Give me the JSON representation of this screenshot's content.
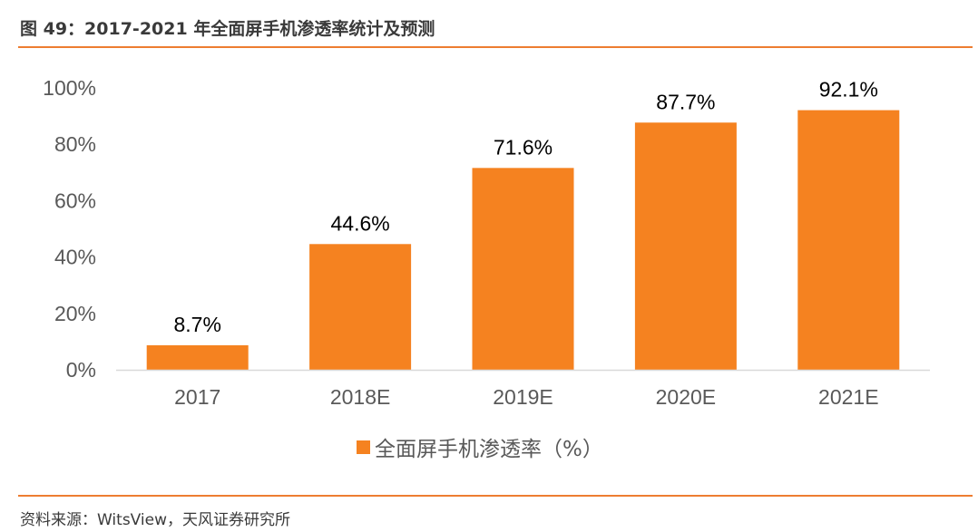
{
  "figure": {
    "title": "图 49：2017-2021 年全面屏手机渗透率统计及预测",
    "source": "资料来源：WitsView，天风证券研究所"
  },
  "chart_data": {
    "type": "bar",
    "categories": [
      "2017",
      "2018E",
      "2019E",
      "2020E",
      "2021E"
    ],
    "series": [
      {
        "name": "全面屏手机渗透率（%）",
        "values": [
          8.7,
          44.6,
          71.6,
          87.7,
          92.1
        ],
        "data_labels": [
          "8.7%",
          "44.6%",
          "71.6%",
          "87.7%",
          "92.1%"
        ],
        "color": "#f58220"
      }
    ],
    "yticks": [
      "0%",
      "20%",
      "40%",
      "60%",
      "80%",
      "100%"
    ],
    "ylim": [
      0,
      100
    ],
    "grid": false,
    "legend_position": "bottom",
    "legend_label": "全面屏手机渗透率（%）"
  },
  "colors": {
    "accent": "#ed7d31",
    "bar": "#f58220",
    "axis": "#d9d9d9",
    "text": "#595959"
  }
}
